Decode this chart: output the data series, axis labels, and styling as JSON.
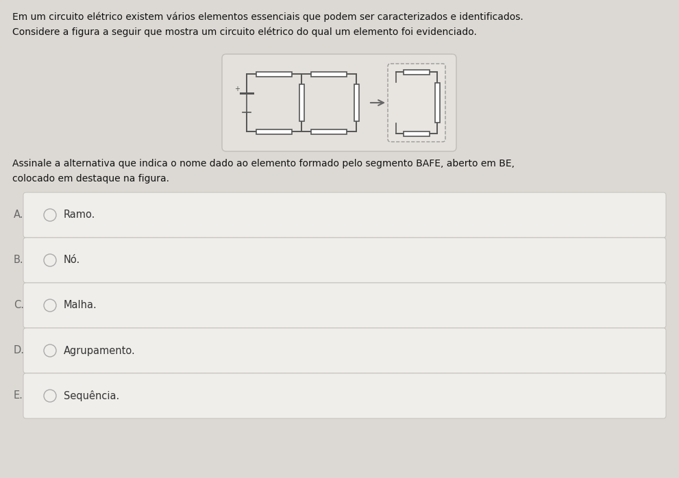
{
  "page_bg": "#dcd9d4",
  "title_lines": [
    "Em um circuito elétrico existem vários elementos essenciais que podem ser caracterizados e identificados.",
    "Considere a figura a seguir que mostra um circuito elétrico do qual um elemento foi evidenciado."
  ],
  "question_lines": [
    "Assinale a alternativa que indica o nome dado ao elemento formado pelo segmento BAFE, aberto em BE,",
    "colocado em destaque na figura."
  ],
  "options": [
    {
      "label": "A.",
      "text": "Ramo."
    },
    {
      "label": "B.",
      "text": "Nó."
    },
    {
      "label": "C.",
      "text": "Malha."
    },
    {
      "label": "D.",
      "text": "Agrupamento."
    },
    {
      "label": "E.",
      "text": "Sequência."
    }
  ],
  "option_box_color": "#f0eeeb",
  "option_box_edge_color": "#c8c5c0",
  "option_text_color": "#333333",
  "label_color": "#666666",
  "circuit_box_color": "#e4e1dc",
  "circuit_box_edge_color": "#c0bdb8",
  "title_fontsize": 10.0,
  "question_fontsize": 10.0,
  "option_fontsize": 10.5
}
